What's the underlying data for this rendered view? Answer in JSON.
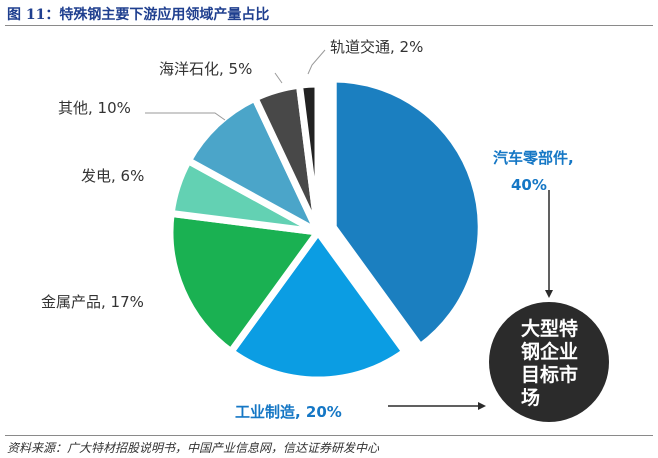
{
  "header": {
    "title": "图 11：特殊钢主要下游应用领域产量占比"
  },
  "footer": {
    "source": "资料来源：广大特材招股说明书，中国产业信息网，信达证券研发中心"
  },
  "callout": {
    "text_lines": [
      "大型特",
      "钢企业",
      "目标市",
      "场"
    ],
    "color": "#2b2b2b"
  },
  "chart_data": {
    "type": "pie",
    "title": "图 11：特殊钢主要下游应用领域产量占比",
    "unit": "%",
    "slices": [
      {
        "name": "汽车零部件",
        "value": 40,
        "label": "汽车零部件,",
        "value_label": "40%",
        "color": "#1b7fc0",
        "highlight": true
      },
      {
        "name": "工业制造",
        "value": 20,
        "label": "工业制造, 20%",
        "color": "#0b9de3",
        "highlight": true
      },
      {
        "name": "金属产品",
        "value": 17,
        "label": "金属产品, 17%",
        "color": "#1ab152",
        "highlight": false
      },
      {
        "name": "发电",
        "value": 6,
        "label": "发电, 6%",
        "color": "#63d1b3",
        "highlight": false
      },
      {
        "name": "其他",
        "value": 10,
        "label": "其他, 10%",
        "color": "#4ba5c9",
        "highlight": false
      },
      {
        "name": "海洋石化",
        "value": 5,
        "label": "海洋石化, 5%",
        "color": "#484848",
        "highlight": false
      },
      {
        "name": "轨道交通",
        "value": 2,
        "label": "轨道交通, 2%",
        "color": "#222222",
        "highlight": false
      }
    ],
    "legend": "none",
    "start": "top, clockwise",
    "exploded_slice": "汽车零部件",
    "highlight_label_color": "#1577c5"
  }
}
